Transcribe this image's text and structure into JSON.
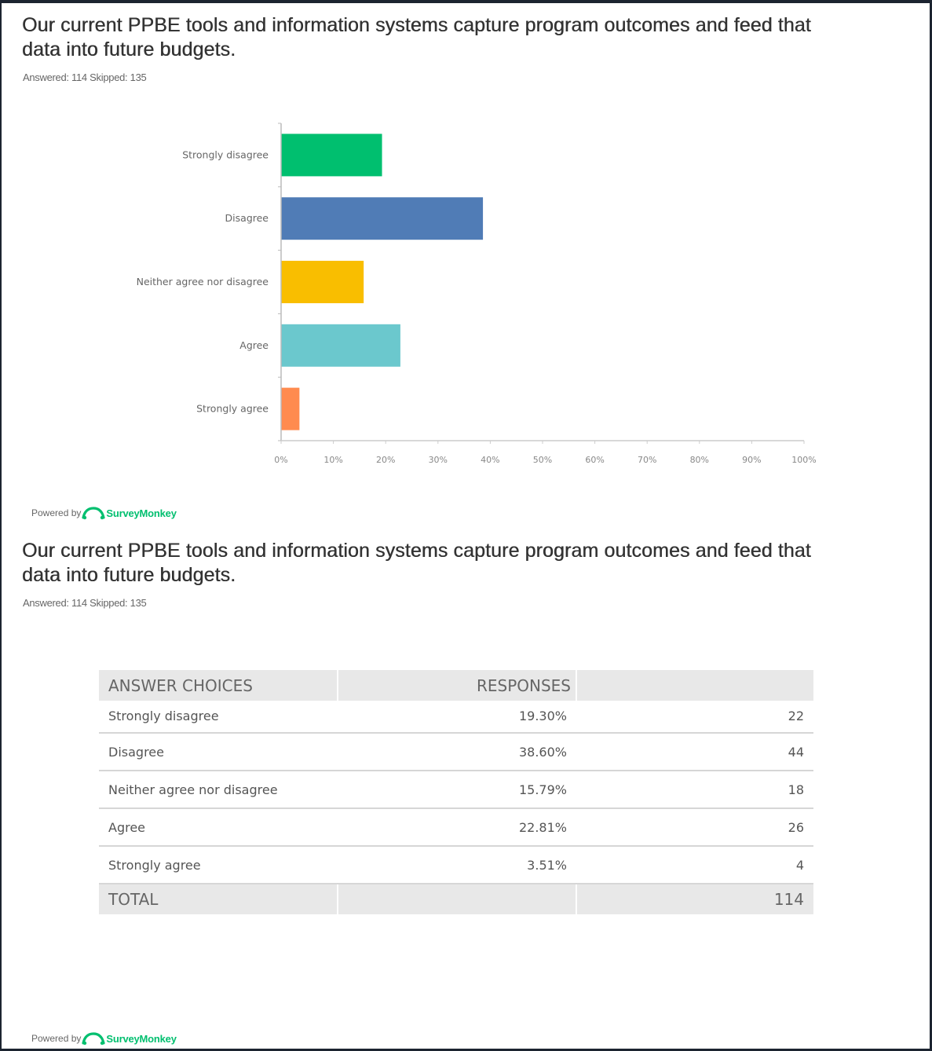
{
  "question": {
    "title": "Our current PPBE tools and information systems capture program outcomes and feed that data into future budgets.",
    "meta": "Answered: 114 Skipped: 135"
  },
  "colors": {
    "strongly_disagree": "#00bf6f",
    "disagree": "#507cb6",
    "neither": "#f9be00",
    "agree": "#6bc8cd",
    "strongly_agree": "#ff8b4f",
    "brand": "#00bf6f"
  },
  "chart_data": {
    "type": "bar",
    "orientation": "horizontal",
    "title": "Our current PPBE tools and information systems capture program outcomes and feed that data into future budgets.",
    "categories": [
      "Strongly disagree",
      "Disagree",
      "Neither agree nor disagree",
      "Agree",
      "Strongly agree"
    ],
    "values": [
      19.3,
      38.6,
      15.79,
      22.81,
      3.51
    ],
    "colors": [
      "#00bf6f",
      "#507cb6",
      "#f9be00",
      "#6bc8cd",
      "#ff8b4f"
    ],
    "xlim": [
      0,
      100
    ],
    "xticks": [
      "0%",
      "10%",
      "20%",
      "30%",
      "40%",
      "50%",
      "60%",
      "70%",
      "80%",
      "90%",
      "100%"
    ],
    "xlabel": "",
    "ylabel": "",
    "grid": false,
    "legend": "none"
  },
  "powered_by": {
    "prefix": "Powered by",
    "brand": "SurveyMonkey",
    "icon": "surveymonkey-logo-icon"
  },
  "table": {
    "headers": {
      "answer_choices": "ANSWER CHOICES",
      "responses": "RESPONSES"
    },
    "rows": [
      {
        "choice": "Strongly disagree",
        "percent": "19.30%",
        "count": "22"
      },
      {
        "choice": "Disagree",
        "percent": "38.60%",
        "count": "44"
      },
      {
        "choice": "Neither agree nor disagree",
        "percent": "15.79%",
        "count": "18"
      },
      {
        "choice": "Agree",
        "percent": "22.81%",
        "count": "26"
      },
      {
        "choice": "Strongly agree",
        "percent": "3.51%",
        "count": "4"
      }
    ],
    "total_label": "TOTAL",
    "total_count": "114"
  }
}
